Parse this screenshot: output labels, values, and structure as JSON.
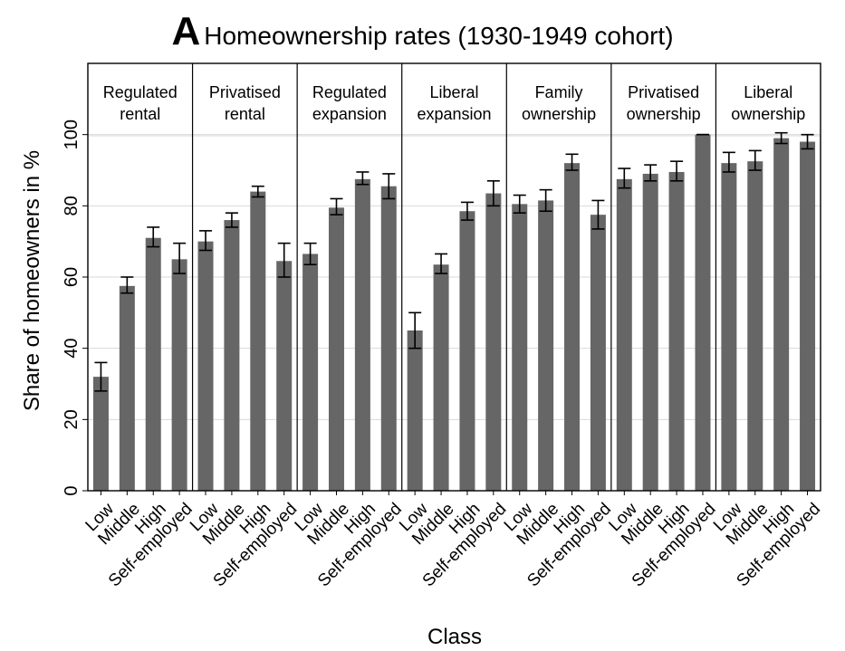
{
  "chart_data": {
    "type": "bar",
    "panel_letter": "A",
    "title": "Homeownership rates (1930-1949 cohort)",
    "xlabel": "Class",
    "ylabel": "Share of homeowners in %",
    "ylim": [
      0,
      120
    ],
    "yticks": [
      0,
      20,
      40,
      60,
      80,
      100
    ],
    "grid": true,
    "categories": [
      "Low",
      "Middle",
      "High",
      "Self-employed"
    ],
    "bar_color": "#666666",
    "panels": [
      {
        "name_lines": [
          "Regulated",
          "rental"
        ],
        "values": [
          32,
          57.5,
          71,
          65
        ],
        "ci_low": [
          28,
          55.5,
          68.5,
          61
        ],
        "ci_high": [
          36,
          60,
          74,
          69.5
        ]
      },
      {
        "name_lines": [
          "Privatised",
          "rental"
        ],
        "values": [
          70,
          76,
          84,
          64.5
        ],
        "ci_low": [
          67.5,
          74,
          82.5,
          60
        ],
        "ci_high": [
          73,
          78,
          85.5,
          69.5
        ]
      },
      {
        "name_lines": [
          "Regulated",
          "expansion"
        ],
        "values": [
          66.5,
          79.5,
          87.5,
          85.5
        ],
        "ci_low": [
          63.5,
          77.5,
          86,
          82
        ],
        "ci_high": [
          69.5,
          82,
          89.5,
          89
        ]
      },
      {
        "name_lines": [
          "Liberal",
          "expansion"
        ],
        "values": [
          45,
          63.5,
          78.5,
          83.5
        ],
        "ci_low": [
          40,
          61,
          76,
          80
        ],
        "ci_high": [
          50,
          66.5,
          81,
          87
        ]
      },
      {
        "name_lines": [
          "Family",
          "ownership"
        ],
        "values": [
          80.5,
          81.5,
          92,
          77.5
        ],
        "ci_low": [
          78,
          78.5,
          90,
          73.5
        ],
        "ci_high": [
          83,
          84.5,
          94.5,
          81.5
        ]
      },
      {
        "name_lines": [
          "Privatised",
          "ownership"
        ],
        "values": [
          87.5,
          89,
          89.5,
          100
        ],
        "ci_low": [
          85,
          87,
          87,
          100
        ],
        "ci_high": [
          90.5,
          91.5,
          92.5,
          100
        ]
      },
      {
        "name_lines": [
          "Liberal",
          "ownership"
        ],
        "values": [
          92,
          92.5,
          99,
          98
        ],
        "ci_low": [
          89.5,
          90,
          97.5,
          96
        ],
        "ci_high": [
          95,
          95.5,
          100.5,
          100
        ]
      }
    ]
  }
}
